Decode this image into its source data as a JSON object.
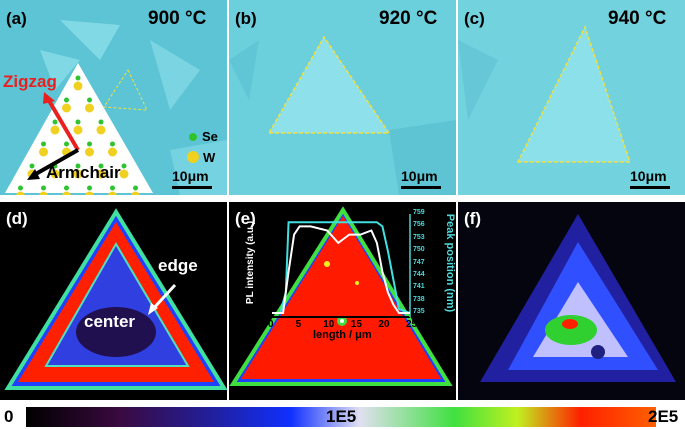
{
  "panels": {
    "a": {
      "label": "(a)",
      "temp": "900 °C",
      "zigzag": "Zigzag",
      "armchair": "Armchair",
      "legend_se": "Se",
      "legend_w": "W",
      "scale": "10μm"
    },
    "b": {
      "label": "(b)",
      "temp": "920 °C",
      "scale": "10μm"
    },
    "c": {
      "label": "(c)",
      "temp": "940 °C",
      "scale": "10μm"
    },
    "d": {
      "label": "(d)",
      "edge": "edge",
      "center": "center"
    },
    "e": {
      "label": "(e)",
      "ylabel_left": "PL intensity (a.u.)",
      "ylabel_right": "Peak position (nm)",
      "xlabel": "length / μm",
      "x_ticks": [
        "0",
        "5",
        "10",
        "15",
        "20",
        "25"
      ],
      "y_ticks": [
        "735",
        "738",
        "741",
        "744",
        "747",
        "750",
        "753",
        "756",
        "759"
      ]
    },
    "f": {
      "label": "(f)"
    }
  },
  "chart_data": {
    "type": "line",
    "xlabel": "length / μm",
    "ylabel": "Peak position (nm)",
    "xlim": [
      0,
      25
    ],
    "ylim": [
      735,
      759
    ],
    "series": [
      {
        "x": [
          0,
          1.5,
          2.5,
          3,
          5,
          10,
          15,
          19,
          20,
          21,
          22,
          23,
          25
        ],
        "y": [
          735,
          735,
          740,
          757,
          757,
          757,
          757,
          757,
          756,
          750,
          743,
          736,
          735
        ]
      },
      {
        "x": [
          0,
          2,
          3,
          4,
          5,
          7,
          10,
          12,
          14,
          16,
          18,
          19,
          20,
          21,
          22,
          23,
          25
        ],
        "y": [
          735,
          735,
          745,
          754,
          756,
          756,
          755,
          752,
          754,
          754,
          755,
          752,
          745,
          740,
          737,
          735,
          735
        ]
      }
    ]
  },
  "colorbar": {
    "min": "0",
    "mid": "1E5",
    "max": "2E5"
  },
  "colors": {
    "substrate": "#5fc7d6",
    "crystal": "#8ee0ea",
    "outline": "#f0e040",
    "red": "#ff1a00"
  }
}
